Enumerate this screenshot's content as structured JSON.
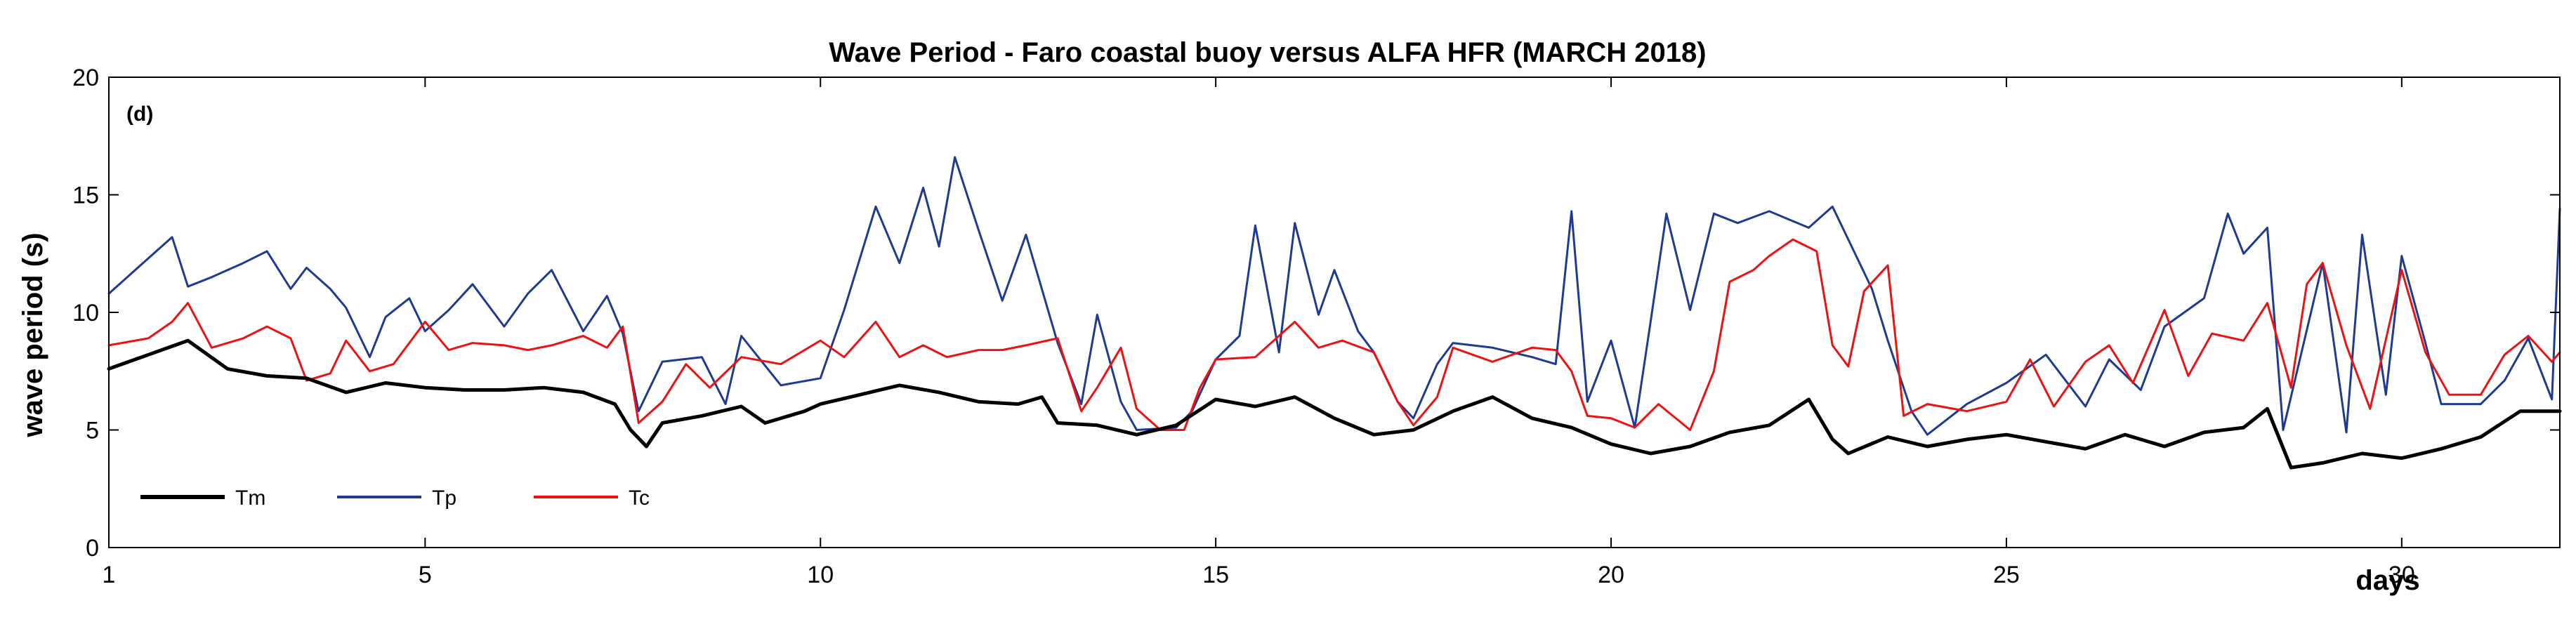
{
  "chart_data": {
    "type": "line",
    "title": "Wave Period - Faro coastal buoy versus ALFA HFR (MARCH 2018)",
    "panel_label": "(d)",
    "ylabel": "wave period (s)",
    "xlabel": "days",
    "xlim": [
      1,
      32
    ],
    "ylim": [
      0,
      20
    ],
    "xticks": [
      1,
      5,
      10,
      15,
      20,
      25,
      30
    ],
    "yticks": [
      0,
      5,
      10,
      15,
      20
    ],
    "grid": false,
    "legend_position": "bottom-left",
    "series": [
      {
        "name": "Tm",
        "color": "#000000",
        "width": 5,
        "points": [
          [
            1,
            7.6
          ],
          [
            1.5,
            8.2
          ],
          [
            2,
            8.8
          ],
          [
            2.5,
            7.6
          ],
          [
            3,
            7.3
          ],
          [
            3.5,
            7.2
          ],
          [
            4,
            6.6
          ],
          [
            4.5,
            7.0
          ],
          [
            5,
            6.8
          ],
          [
            5.5,
            6.7
          ],
          [
            6,
            6.7
          ],
          [
            6.5,
            6.8
          ],
          [
            7,
            6.6
          ],
          [
            7.4,
            6.1
          ],
          [
            7.6,
            5.0
          ],
          [
            7.8,
            4.3
          ],
          [
            8,
            5.3
          ],
          [
            8.5,
            5.6
          ],
          [
            9,
            6.0
          ],
          [
            9.3,
            5.3
          ],
          [
            9.8,
            5.8
          ],
          [
            10,
            6.1
          ],
          [
            10.5,
            6.5
          ],
          [
            11,
            6.9
          ],
          [
            11.5,
            6.6
          ],
          [
            12,
            6.2
          ],
          [
            12.5,
            6.1
          ],
          [
            12.8,
            6.4
          ],
          [
            13,
            5.3
          ],
          [
            13.5,
            5.2
          ],
          [
            14,
            4.8
          ],
          [
            14.5,
            5.2
          ],
          [
            15,
            6.3
          ],
          [
            15.5,
            6.0
          ],
          [
            16,
            6.4
          ],
          [
            16.5,
            5.5
          ],
          [
            17,
            4.8
          ],
          [
            17.5,
            5.0
          ],
          [
            18,
            5.8
          ],
          [
            18.5,
            6.4
          ],
          [
            19,
            5.5
          ],
          [
            19.5,
            5.1
          ],
          [
            20,
            4.4
          ],
          [
            20.5,
            4.0
          ],
          [
            21,
            4.3
          ],
          [
            21.5,
            4.9
          ],
          [
            22,
            5.2
          ],
          [
            22.5,
            6.3
          ],
          [
            22.8,
            4.6
          ],
          [
            23,
            4.0
          ],
          [
            23.5,
            4.7
          ],
          [
            24,
            4.3
          ],
          [
            24.5,
            4.6
          ],
          [
            25,
            4.8
          ],
          [
            25.5,
            4.5
          ],
          [
            26,
            4.2
          ],
          [
            26.5,
            4.8
          ],
          [
            27,
            4.3
          ],
          [
            27.5,
            4.9
          ],
          [
            28,
            5.1
          ],
          [
            28.3,
            5.9
          ],
          [
            28.6,
            3.4
          ],
          [
            29,
            3.6
          ],
          [
            29.5,
            4.0
          ],
          [
            30,
            3.8
          ],
          [
            30.5,
            4.2
          ],
          [
            31,
            4.7
          ],
          [
            31.5,
            5.8
          ],
          [
            32,
            5.8
          ]
        ]
      },
      {
        "name": "Tp",
        "color": "#1f3a93",
        "width": 3,
        "points": [
          [
            1,
            10.8
          ],
          [
            1.5,
            12.3
          ],
          [
            1.8,
            13.2
          ],
          [
            2,
            11.1
          ],
          [
            2.3,
            11.5
          ],
          [
            2.7,
            12.1
          ],
          [
            3,
            12.6
          ],
          [
            3.3,
            11.0
          ],
          [
            3.5,
            11.9
          ],
          [
            3.8,
            11.0
          ],
          [
            4,
            10.2
          ],
          [
            4.3,
            8.1
          ],
          [
            4.5,
            9.8
          ],
          [
            4.8,
            10.6
          ],
          [
            5,
            9.2
          ],
          [
            5.3,
            10.1
          ],
          [
            5.6,
            11.2
          ],
          [
            6,
            9.4
          ],
          [
            6.3,
            10.8
          ],
          [
            6.6,
            11.8
          ],
          [
            7,
            9.2
          ],
          [
            7.3,
            10.7
          ],
          [
            7.5,
            9.1
          ],
          [
            7.7,
            5.8
          ],
          [
            8,
            7.9
          ],
          [
            8.5,
            8.1
          ],
          [
            8.8,
            6.1
          ],
          [
            9,
            9.0
          ],
          [
            9.5,
            6.9
          ],
          [
            10,
            7.2
          ],
          [
            10.3,
            10.1
          ],
          [
            10.7,
            14.5
          ],
          [
            11,
            12.1
          ],
          [
            11.3,
            15.3
          ],
          [
            11.5,
            12.8
          ],
          [
            11.7,
            16.6
          ],
          [
            12,
            13.5
          ],
          [
            12.3,
            10.5
          ],
          [
            12.6,
            13.3
          ],
          [
            13,
            8.7
          ],
          [
            13.3,
            6.1
          ],
          [
            13.5,
            9.9
          ],
          [
            13.8,
            6.2
          ],
          [
            14,
            5.0
          ],
          [
            14.5,
            5.1
          ],
          [
            14.7,
            5.8
          ],
          [
            15,
            8.0
          ],
          [
            15.3,
            9.0
          ],
          [
            15.5,
            13.7
          ],
          [
            15.8,
            8.3
          ],
          [
            16,
            13.8
          ],
          [
            16.3,
            9.9
          ],
          [
            16.5,
            11.8
          ],
          [
            16.8,
            9.2
          ],
          [
            17,
            8.3
          ],
          [
            17.3,
            6.2
          ],
          [
            17.5,
            5.5
          ],
          [
            17.8,
            7.8
          ],
          [
            18,
            8.7
          ],
          [
            18.5,
            8.5
          ],
          [
            19,
            8.1
          ],
          [
            19.3,
            7.8
          ],
          [
            19.5,
            14.3
          ],
          [
            19.7,
            6.2
          ],
          [
            20,
            8.8
          ],
          [
            20.3,
            5.1
          ],
          [
            20.5,
            9.6
          ],
          [
            20.7,
            14.2
          ],
          [
            21,
            10.1
          ],
          [
            21.3,
            14.2
          ],
          [
            21.6,
            13.8
          ],
          [
            22,
            14.3
          ],
          [
            22.5,
            13.6
          ],
          [
            22.8,
            14.5
          ],
          [
            23,
            13.1
          ],
          [
            23.3,
            11.0
          ],
          [
            23.5,
            8.8
          ],
          [
            23.8,
            5.8
          ],
          [
            24,
            4.8
          ],
          [
            24.5,
            6.1
          ],
          [
            25,
            7.0
          ],
          [
            25.5,
            8.2
          ],
          [
            26,
            6.0
          ],
          [
            26.3,
            8.0
          ],
          [
            26.7,
            6.7
          ],
          [
            27,
            9.4
          ],
          [
            27.5,
            10.6
          ],
          [
            27.8,
            14.2
          ],
          [
            28,
            12.5
          ],
          [
            28.3,
            13.6
          ],
          [
            28.5,
            5.0
          ],
          [
            29,
            12.1
          ],
          [
            29.3,
            4.9
          ],
          [
            29.5,
            13.3
          ],
          [
            29.8,
            6.5
          ],
          [
            30,
            12.4
          ],
          [
            30.3,
            8.7
          ],
          [
            30.5,
            6.1
          ],
          [
            31,
            6.1
          ],
          [
            31.3,
            7.1
          ],
          [
            31.6,
            8.9
          ],
          [
            31.9,
            6.3
          ],
          [
            32,
            14.4
          ]
        ]
      },
      {
        "name": "Tc",
        "color": "#ee1111",
        "width": 3,
        "points": [
          [
            1,
            8.6
          ],
          [
            1.5,
            8.9
          ],
          [
            1.8,
            9.6
          ],
          [
            2,
            10.4
          ],
          [
            2.3,
            8.5
          ],
          [
            2.7,
            8.9
          ],
          [
            3,
            9.4
          ],
          [
            3.3,
            8.9
          ],
          [
            3.5,
            7.1
          ],
          [
            3.8,
            7.4
          ],
          [
            4,
            8.8
          ],
          [
            4.3,
            7.5
          ],
          [
            4.6,
            7.8
          ],
          [
            5,
            9.6
          ],
          [
            5.3,
            8.4
          ],
          [
            5.6,
            8.7
          ],
          [
            6,
            8.6
          ],
          [
            6.3,
            8.4
          ],
          [
            6.6,
            8.6
          ],
          [
            7,
            9.0
          ],
          [
            7.3,
            8.5
          ],
          [
            7.5,
            9.4
          ],
          [
            7.7,
            5.3
          ],
          [
            8,
            6.2
          ],
          [
            8.3,
            7.8
          ],
          [
            8.6,
            6.8
          ],
          [
            9,
            8.1
          ],
          [
            9.5,
            7.8
          ],
          [
            10,
            8.8
          ],
          [
            10.3,
            8.1
          ],
          [
            10.7,
            9.6
          ],
          [
            11,
            8.1
          ],
          [
            11.3,
            8.6
          ],
          [
            11.6,
            8.1
          ],
          [
            12,
            8.4
          ],
          [
            12.3,
            8.4
          ],
          [
            12.6,
            8.6
          ],
          [
            13,
            8.9
          ],
          [
            13.3,
            5.8
          ],
          [
            13.5,
            6.8
          ],
          [
            13.8,
            8.5
          ],
          [
            14,
            5.9
          ],
          [
            14.3,
            5.0
          ],
          [
            14.6,
            5.0
          ],
          [
            14.8,
            6.8
          ],
          [
            15,
            8.0
          ],
          [
            15.5,
            8.1
          ],
          [
            16,
            9.6
          ],
          [
            16.3,
            8.5
          ],
          [
            16.6,
            8.8
          ],
          [
            17,
            8.3
          ],
          [
            17.3,
            6.2
          ],
          [
            17.5,
            5.2
          ],
          [
            17.8,
            6.4
          ],
          [
            18,
            8.5
          ],
          [
            18.5,
            7.9
          ],
          [
            19,
            8.5
          ],
          [
            19.3,
            8.4
          ],
          [
            19.5,
            7.5
          ],
          [
            19.7,
            5.6
          ],
          [
            20,
            5.5
          ],
          [
            20.3,
            5.1
          ],
          [
            20.6,
            6.1
          ],
          [
            21,
            5.0
          ],
          [
            21.3,
            7.5
          ],
          [
            21.5,
            11.3
          ],
          [
            21.8,
            11.8
          ],
          [
            22,
            12.4
          ],
          [
            22.3,
            13.1
          ],
          [
            22.6,
            12.6
          ],
          [
            22.8,
            8.6
          ],
          [
            23,
            7.7
          ],
          [
            23.2,
            10.9
          ],
          [
            23.5,
            12.0
          ],
          [
            23.7,
            5.6
          ],
          [
            24,
            6.1
          ],
          [
            24.5,
            5.8
          ],
          [
            25,
            6.2
          ],
          [
            25.3,
            8.0
          ],
          [
            25.6,
            6.0
          ],
          [
            26,
            7.9
          ],
          [
            26.3,
            8.6
          ],
          [
            26.6,
            7.0
          ],
          [
            27,
            10.1
          ],
          [
            27.3,
            7.3
          ],
          [
            27.6,
            9.1
          ],
          [
            28,
            8.8
          ],
          [
            28.3,
            10.4
          ],
          [
            28.6,
            6.8
          ],
          [
            28.8,
            11.2
          ],
          [
            29,
            12.1
          ],
          [
            29.3,
            8.6
          ],
          [
            29.6,
            5.9
          ],
          [
            30,
            11.8
          ],
          [
            30.3,
            8.3
          ],
          [
            30.6,
            6.5
          ],
          [
            31,
            6.5
          ],
          [
            31.3,
            8.2
          ],
          [
            31.6,
            9.0
          ],
          [
            31.9,
            7.9
          ],
          [
            32,
            8.3
          ]
        ]
      }
    ]
  }
}
